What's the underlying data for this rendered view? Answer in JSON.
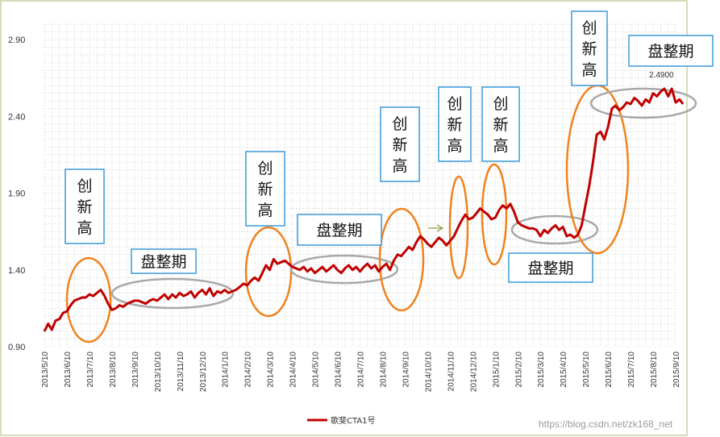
{
  "chart_data": {
    "type": "line",
    "title": "",
    "xlabel": "",
    "ylabel": "",
    "ylim": [
      0.9,
      3.0
    ],
    "grid": true,
    "legend_position": "bottom",
    "y_ticks": [
      "0.90",
      "1.40",
      "1.90",
      "2.40",
      "2.90"
    ],
    "y_tick_values": [
      0.9,
      1.4,
      1.9,
      2.4,
      2.9
    ],
    "x_ticks": [
      "2013/5/10",
      "2013/6/10",
      "2013/7/10",
      "2013/8/10",
      "2013/9/10",
      "2013/10/10",
      "2013/11/10",
      "2013/12/10",
      "2014/1/10",
      "2014/2/10",
      "2014/3/10",
      "2014/4/10",
      "2014/5/10",
      "2014/6/10",
      "2014/7/10",
      "2014/8/10",
      "2014/9/10",
      "2014/10/10",
      "2014/11/10",
      "2014/12/10",
      "2015/1/10",
      "2015/2/10",
      "2015/3/10",
      "2015/4/10",
      "2015/5/10",
      "2015/6/10",
      "2015/7/10",
      "2015/8/10",
      "2015/9/10"
    ],
    "series": [
      {
        "name": "歌斐CTA1号",
        "color": "#c00000",
        "points": [
          [
            0.0,
            1.0
          ],
          [
            0.17,
            1.05
          ],
          [
            0.33,
            1.01
          ],
          [
            0.5,
            1.07
          ],
          [
            0.67,
            1.08
          ],
          [
            0.83,
            1.12
          ],
          [
            1.0,
            1.13
          ],
          [
            1.17,
            1.17
          ],
          [
            1.33,
            1.2
          ],
          [
            1.5,
            1.21
          ],
          [
            1.67,
            1.22
          ],
          [
            1.83,
            1.22
          ],
          [
            2.0,
            1.24
          ],
          [
            2.17,
            1.23
          ],
          [
            2.33,
            1.25
          ],
          [
            2.5,
            1.27
          ],
          [
            2.67,
            1.23
          ],
          [
            2.83,
            1.18
          ],
          [
            3.0,
            1.14
          ],
          [
            3.17,
            1.15
          ],
          [
            3.33,
            1.17
          ],
          [
            3.5,
            1.16
          ],
          [
            3.67,
            1.18
          ],
          [
            3.83,
            1.19
          ],
          [
            4.0,
            1.2
          ],
          [
            4.17,
            1.2
          ],
          [
            4.33,
            1.19
          ],
          [
            4.5,
            1.18
          ],
          [
            4.67,
            1.2
          ],
          [
            4.83,
            1.21
          ],
          [
            5.0,
            1.2
          ],
          [
            5.17,
            1.22
          ],
          [
            5.33,
            1.24
          ],
          [
            5.5,
            1.21
          ],
          [
            5.67,
            1.24
          ],
          [
            5.83,
            1.22
          ],
          [
            6.0,
            1.25
          ],
          [
            6.17,
            1.23
          ],
          [
            6.33,
            1.24
          ],
          [
            6.5,
            1.26
          ],
          [
            6.67,
            1.22
          ],
          [
            6.83,
            1.25
          ],
          [
            7.0,
            1.27
          ],
          [
            7.17,
            1.24
          ],
          [
            7.33,
            1.28
          ],
          [
            7.5,
            1.23
          ],
          [
            7.67,
            1.26
          ],
          [
            7.83,
            1.25
          ],
          [
            8.0,
            1.27
          ],
          [
            8.17,
            1.25
          ],
          [
            8.33,
            1.26
          ],
          [
            8.5,
            1.27
          ],
          [
            8.67,
            1.29
          ],
          [
            8.83,
            1.31
          ],
          [
            9.0,
            1.3
          ],
          [
            9.17,
            1.33
          ],
          [
            9.33,
            1.35
          ],
          [
            9.5,
            1.33
          ],
          [
            9.67,
            1.38
          ],
          [
            9.83,
            1.43
          ],
          [
            10.0,
            1.4
          ],
          [
            10.17,
            1.47
          ],
          [
            10.33,
            1.44
          ],
          [
            10.5,
            1.45
          ],
          [
            10.67,
            1.46
          ],
          [
            10.83,
            1.44
          ],
          [
            11.0,
            1.42
          ],
          [
            11.17,
            1.41
          ],
          [
            11.33,
            1.4
          ],
          [
            11.5,
            1.42
          ],
          [
            11.67,
            1.39
          ],
          [
            11.83,
            1.41
          ],
          [
            12.0,
            1.38
          ],
          [
            12.17,
            1.4
          ],
          [
            12.33,
            1.42
          ],
          [
            12.5,
            1.39
          ],
          [
            12.67,
            1.41
          ],
          [
            12.83,
            1.43
          ],
          [
            13.0,
            1.4
          ],
          [
            13.17,
            1.38
          ],
          [
            13.33,
            1.41
          ],
          [
            13.5,
            1.43
          ],
          [
            13.67,
            1.4
          ],
          [
            13.83,
            1.42
          ],
          [
            14.0,
            1.39
          ],
          [
            14.17,
            1.42
          ],
          [
            14.33,
            1.44
          ],
          [
            14.5,
            1.41
          ],
          [
            14.67,
            1.43
          ],
          [
            14.83,
            1.39
          ],
          [
            15.0,
            1.42
          ],
          [
            15.17,
            1.44
          ],
          [
            15.33,
            1.4
          ],
          [
            15.5,
            1.46
          ],
          [
            15.67,
            1.5
          ],
          [
            15.83,
            1.49
          ],
          [
            16.0,
            1.52
          ],
          [
            16.17,
            1.55
          ],
          [
            16.33,
            1.53
          ],
          [
            16.5,
            1.58
          ],
          [
            16.67,
            1.62
          ],
          [
            16.83,
            1.6
          ],
          [
            17.0,
            1.57
          ],
          [
            17.17,
            1.55
          ],
          [
            17.33,
            1.58
          ],
          [
            17.5,
            1.61
          ],
          [
            17.67,
            1.59
          ],
          [
            17.83,
            1.56
          ],
          [
            18.0,
            1.59
          ],
          [
            18.17,
            1.62
          ],
          [
            18.33,
            1.67
          ],
          [
            18.5,
            1.72
          ],
          [
            18.67,
            1.76
          ],
          [
            18.83,
            1.73
          ],
          [
            19.0,
            1.74
          ],
          [
            19.17,
            1.77
          ],
          [
            19.33,
            1.8
          ],
          [
            19.5,
            1.78
          ],
          [
            19.67,
            1.76
          ],
          [
            19.83,
            1.73
          ],
          [
            20.0,
            1.74
          ],
          [
            20.17,
            1.79
          ],
          [
            20.33,
            1.82
          ],
          [
            20.5,
            1.8
          ],
          [
            20.67,
            1.83
          ],
          [
            20.83,
            1.78
          ],
          [
            21.0,
            1.71
          ],
          [
            21.17,
            1.69
          ],
          [
            21.33,
            1.68
          ],
          [
            21.5,
            1.67
          ],
          [
            21.67,
            1.67
          ],
          [
            21.83,
            1.66
          ],
          [
            22.0,
            1.62
          ],
          [
            22.17,
            1.66
          ],
          [
            22.33,
            1.64
          ],
          [
            22.5,
            1.67
          ],
          [
            22.67,
            1.69
          ],
          [
            22.83,
            1.66
          ],
          [
            23.0,
            1.68
          ],
          [
            23.17,
            1.62
          ],
          [
            23.33,
            1.63
          ],
          [
            23.5,
            1.61
          ],
          [
            23.67,
            1.63
          ],
          [
            23.83,
            1.69
          ],
          [
            24.0,
            1.82
          ],
          [
            24.17,
            1.95
          ],
          [
            24.33,
            2.1
          ],
          [
            24.5,
            2.28
          ],
          [
            24.67,
            2.3
          ],
          [
            24.83,
            2.25
          ],
          [
            25.0,
            2.33
          ],
          [
            25.17,
            2.45
          ],
          [
            25.33,
            2.47
          ],
          [
            25.5,
            2.44
          ],
          [
            25.67,
            2.46
          ],
          [
            25.83,
            2.49
          ],
          [
            26.0,
            2.48
          ],
          [
            26.17,
            2.52
          ],
          [
            26.33,
            2.5
          ],
          [
            26.5,
            2.47
          ],
          [
            26.67,
            2.51
          ],
          [
            26.83,
            2.49
          ],
          [
            27.0,
            2.55
          ],
          [
            27.17,
            2.53
          ],
          [
            27.33,
            2.56
          ],
          [
            27.5,
            2.58
          ],
          [
            27.67,
            2.53
          ],
          [
            27.83,
            2.58
          ],
          [
            28.0,
            2.49
          ],
          [
            28.17,
            2.51
          ],
          [
            28.33,
            2.48
          ]
        ]
      }
    ],
    "value_label": "2.4900",
    "annotations": [
      {
        "type": "box",
        "text": "创新高",
        "vertical": true
      },
      {
        "type": "box",
        "text": "盘整期",
        "vertical": false
      },
      {
        "type": "box",
        "text": "创新高",
        "vertical": true
      },
      {
        "type": "box",
        "text": "盘整期",
        "vertical": false
      },
      {
        "type": "box",
        "text": "创新高",
        "vertical": true
      },
      {
        "type": "box",
        "text": "创新高",
        "vertical": true
      },
      {
        "type": "box",
        "text": "创新高",
        "vertical": true
      },
      {
        "type": "box",
        "text": "盘整期",
        "vertical": false
      },
      {
        "type": "box",
        "text": "创新高",
        "vertical": true
      },
      {
        "type": "box",
        "text": "盘整期",
        "vertical": false
      }
    ],
    "colors": {
      "line": "#c00000",
      "high_ellipse": "#f0821e",
      "consolidation_ellipse": "#a9a9a9",
      "box_border": "#3a9ad9",
      "chart_border": "#c8d0a0"
    }
  },
  "watermark": "https://blog.csdn.net/zk168_net"
}
